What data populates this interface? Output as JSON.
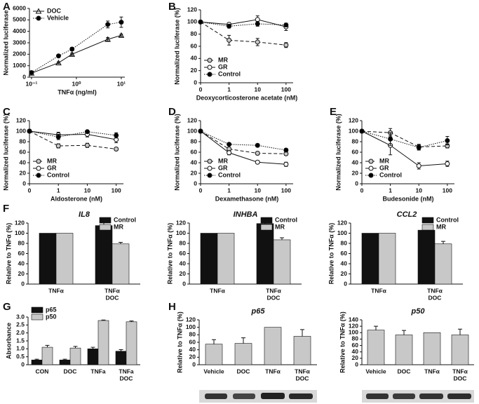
{
  "chart_data": [
    {
      "type": "line",
      "panel": "A",
      "xlabel": "TNFα (ng/ml)",
      "ylabel": "Normalized luciferase",
      "xscale": "log",
      "x": [
        0.1,
        0.4,
        0.8,
        5,
        10
      ],
      "xlim": [
        0.09,
        12
      ],
      "xticks": [
        {
          "value": 0.1,
          "label": "10⁻¹"
        },
        {
          "value": 1,
          "label": "10⁰"
        },
        {
          "value": 10,
          "label": "10¹"
        }
      ],
      "ylim": [
        0,
        6000
      ],
      "yticks": [
        0,
        1000,
        2000,
        3000,
        4000,
        5000,
        6000
      ],
      "legend": "upper left",
      "series": [
        {
          "name": "DOC",
          "color": "#ffffff",
          "marker": "triangle",
          "linestyle": "solid",
          "values": [
            350,
            1250,
            2000,
            3300,
            3650
          ],
          "errors": [
            50,
            80,
            100,
            150,
            100
          ]
        },
        {
          "name": "Vehicle",
          "color": "#000000",
          "marker": "circle",
          "linestyle": "dotted",
          "values": [
            400,
            1850,
            2450,
            4600,
            4800
          ],
          "errors": [
            50,
            100,
            150,
            300,
            450
          ]
        }
      ]
    },
    {
      "type": "line",
      "panel": "B",
      "xlabel": "Deoxycorticosterone acetate (nM)",
      "ylabel": "Normalized luciferase (%)",
      "categories": [
        "0",
        "1",
        "10",
        "100"
      ],
      "ylim": [
        0,
        120
      ],
      "yticks": [
        0,
        20,
        40,
        60,
        80,
        100,
        120
      ],
      "legend": "lower left",
      "series": [
        {
          "name": "MR",
          "color": "#c8c8c8",
          "marker": "circle",
          "linestyle": "dashed",
          "values": [
            100,
            70,
            67,
            62
          ],
          "errors": [
            0,
            8,
            6,
            4
          ]
        },
        {
          "name": "GR",
          "color": "#ffffff",
          "marker": "circle",
          "linestyle": "solid",
          "values": [
            100,
            96,
            104,
            92
          ],
          "errors": [
            0,
            3,
            6,
            6
          ]
        },
        {
          "name": "Control",
          "color": "#000000",
          "marker": "circle",
          "linestyle": "dotted",
          "values": [
            100,
            93,
            97,
            95
          ],
          "errors": [
            0,
            3,
            4,
            3
          ]
        }
      ]
    },
    {
      "type": "line",
      "panel": "C",
      "xlabel": "Aldosterone (nM)",
      "ylabel": "Normalized luciferase (%)",
      "categories": [
        "0",
        "1",
        "10",
        "100"
      ],
      "ylim": [
        0,
        120
      ],
      "yticks": [
        0,
        20,
        40,
        60,
        80,
        100,
        120
      ],
      "legend": "lower left",
      "series": [
        {
          "name": "MR",
          "color": "#c8c8c8",
          "marker": "circle",
          "linestyle": "dashed",
          "values": [
            100,
            72,
            73,
            66
          ],
          "errors": [
            0,
            4,
            4,
            3
          ]
        },
        {
          "name": "GR",
          "color": "#ffffff",
          "marker": "circle",
          "linestyle": "solid",
          "values": [
            100,
            93,
            94,
            84
          ],
          "errors": [
            0,
            5,
            5,
            6
          ]
        },
        {
          "name": "Control",
          "color": "#000000",
          "marker": "circle",
          "linestyle": "dotted",
          "values": [
            100,
            89,
            99,
            92
          ],
          "errors": [
            0,
            5,
            3,
            5
          ]
        }
      ]
    },
    {
      "type": "line",
      "panel": "D",
      "xlabel": "Dexamethasone (nM)",
      "ylabel": "Normalized luciferase (%)",
      "categories": [
        "0",
        "1",
        "10",
        "100"
      ],
      "ylim": [
        0,
        120
      ],
      "yticks": [
        0,
        20,
        40,
        60,
        80,
        100,
        120
      ],
      "legend": "lower left",
      "series": [
        {
          "name": "MR",
          "color": "#c8c8c8",
          "marker": "circle",
          "linestyle": "dashed",
          "values": [
            100,
            66,
            58,
            57
          ],
          "errors": [
            0,
            3,
            3,
            3
          ]
        },
        {
          "name": "GR",
          "color": "#ffffff",
          "marker": "circle",
          "linestyle": "solid",
          "values": [
            100,
            59,
            41,
            37
          ],
          "errors": [
            0,
            4,
            3,
            4
          ]
        },
        {
          "name": "Control",
          "color": "#000000",
          "marker": "circle",
          "linestyle": "dotted",
          "values": [
            100,
            75,
            73,
            64
          ],
          "errors": [
            0,
            3,
            3,
            3
          ]
        }
      ]
    },
    {
      "type": "line",
      "panel": "E",
      "xlabel": "Budesonide (nM)",
      "ylabel": "Normalized luciferase (%)",
      "categories": [
        "0",
        "1",
        "10",
        "100"
      ],
      "ylim": [
        0,
        120
      ],
      "yticks": [
        0,
        20,
        40,
        60,
        80,
        100,
        120
      ],
      "legend": "lower left",
      "series": [
        {
          "name": "MR",
          "color": "#c8c8c8",
          "marker": "circle",
          "linestyle": "dashed",
          "values": [
            100,
            97,
            70,
            72
          ],
          "errors": [
            0,
            8,
            5,
            4
          ]
        },
        {
          "name": "GR",
          "color": "#ffffff",
          "marker": "circle",
          "linestyle": "solid",
          "values": [
            100,
            73,
            34,
            38
          ],
          "errors": [
            0,
            18,
            6,
            5
          ]
        },
        {
          "name": "Control",
          "color": "#000000",
          "marker": "circle",
          "linestyle": "dotted",
          "values": [
            100,
            85,
            69,
            82
          ],
          "errors": [
            0,
            12,
            5,
            8
          ]
        }
      ]
    },
    {
      "type": "bar",
      "panel": "F",
      "title": "IL8",
      "ylabel": "Relative to TNFα (%)",
      "categories": [
        "TNFα",
        [
          "TNFα",
          "DOC"
        ]
      ],
      "ylim": [
        0,
        120
      ],
      "yticks": [
        0,
        20,
        40,
        60,
        80,
        100,
        120
      ],
      "legend": "upper right",
      "series": [
        {
          "name": "Control",
          "color": "#111111",
          "values": [
            100,
            115
          ],
          "errors": [
            0,
            9
          ]
        },
        {
          "name": "MR",
          "color": "#c8c8c8",
          "values": [
            100,
            79
          ],
          "errors": [
            0,
            3
          ]
        }
      ]
    },
    {
      "type": "bar",
      "title": "INHBA",
      "ylabel": "Relative to TNFα (%)",
      "categories": [
        "TNFα",
        [
          "TNFα",
          "DOC"
        ]
      ],
      "ylim": [
        0,
        120
      ],
      "yticks": [
        0,
        20,
        40,
        60,
        80,
        100,
        120
      ],
      "legend": "upper right",
      "series": [
        {
          "name": "Control",
          "color": "#111111",
          "values": [
            100,
            119
          ],
          "errors": [
            0,
            9
          ]
        },
        {
          "name": "MR",
          "color": "#c8c8c8",
          "values": [
            100,
            87
          ],
          "errors": [
            0,
            4
          ]
        }
      ]
    },
    {
      "type": "bar",
      "title": "CCL2",
      "ylabel": "Relative to TNFα (%)",
      "categories": [
        "TNFα",
        [
          "TNFα",
          "DOC"
        ]
      ],
      "ylim": [
        0,
        120
      ],
      "yticks": [
        0,
        20,
        40,
        60,
        80,
        100,
        120
      ],
      "legend": "upper right",
      "series": [
        {
          "name": "Control",
          "color": "#111111",
          "values": [
            100,
            106
          ],
          "errors": [
            0,
            8
          ]
        },
        {
          "name": "MR",
          "color": "#c8c8c8",
          "values": [
            100,
            79
          ],
          "errors": [
            0,
            5
          ]
        }
      ]
    },
    {
      "type": "bar",
      "panel": "G",
      "ylabel": "Absorbance",
      "categories": [
        "CON",
        "DOC",
        "TNFa",
        [
          "TNFa",
          "DOC"
        ]
      ],
      "ylim": [
        0,
        3
      ],
      "yticks": [
        0,
        0.5,
        {
          "value": 1,
          "label": "1.0"
        },
        1.5,
        {
          "value": 2,
          "label": "2.0"
        },
        2.5,
        {
          "value": 3,
          "label": "3.0"
        }
      ],
      "legend": "upper left",
      "series": [
        {
          "name": "p65",
          "color": "#111111",
          "values": [
            0.3,
            0.3,
            1.0,
            0.85
          ],
          "errors": [
            0.05,
            0.05,
            0.1,
            0.1
          ]
        },
        {
          "name": "p50",
          "color": "#c8c8c8",
          "values": [
            1.1,
            1.05,
            2.78,
            2.7
          ],
          "errors": [
            0.12,
            0.1,
            0.03,
            0.05
          ]
        }
      ]
    },
    {
      "type": "bar",
      "panel": "H",
      "title": "p65",
      "ylabel": "Relative to TNFα (%)",
      "categories": [
        "Vehicle",
        "DOC",
        "TNFα",
        [
          "TNFα",
          "DOC"
        ]
      ],
      "ylim": [
        0,
        120
      ],
      "yticks": [
        0,
        20,
        40,
        60,
        80,
        100,
        120
      ],
      "series": [
        {
          "color": "#c8c8c8",
          "values": [
            55,
            57,
            100,
            76
          ],
          "errors": [
            12,
            15,
            0,
            18
          ]
        }
      ]
    },
    {
      "type": "bar",
      "title": "p50",
      "ylabel": "Relative to TNFα (%)",
      "categories": [
        "Vehicle",
        "DOC",
        "TNFα",
        [
          "TNFα",
          "DOC"
        ]
      ],
      "ylim": [
        0,
        140
      ],
      "yticks": [
        0,
        20,
        40,
        60,
        80,
        100,
        120,
        140
      ],
      "series": [
        {
          "color": "#c8c8c8",
          "values": [
            108,
            93,
            100,
            93
          ],
          "errors": [
            12,
            14,
            0,
            18
          ]
        }
      ]
    }
  ]
}
